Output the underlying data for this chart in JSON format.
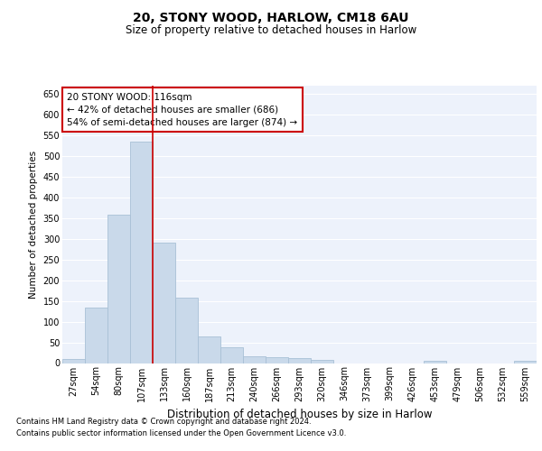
{
  "title": "20, STONY WOOD, HARLOW, CM18 6AU",
  "subtitle": "Size of property relative to detached houses in Harlow",
  "xlabel": "Distribution of detached houses by size in Harlow",
  "ylabel": "Number of detached properties",
  "footnote1": "Contains HM Land Registry data © Crown copyright and database right 2024.",
  "footnote2": "Contains public sector information licensed under the Open Government Licence v3.0.",
  "annotation_line1": "20 STONY WOOD: 116sqm",
  "annotation_line2": "← 42% of detached houses are smaller (686)",
  "annotation_line3": "54% of semi-detached houses are larger (874) →",
  "bar_color": "#c9d9ea",
  "bar_edge_color": "#a8c0d6",
  "redline_color": "#cc0000",
  "annotation_box_edgecolor": "#cc0000",
  "background_color": "#edf2fb",
  "grid_color": "#ffffff",
  "categories": [
    "27sqm",
    "54sqm",
    "80sqm",
    "107sqm",
    "133sqm",
    "160sqm",
    "187sqm",
    "213sqm",
    "240sqm",
    "266sqm",
    "293sqm",
    "320sqm",
    "346sqm",
    "373sqm",
    "399sqm",
    "426sqm",
    "453sqm",
    "479sqm",
    "506sqm",
    "532sqm",
    "559sqm"
  ],
  "values": [
    10,
    135,
    358,
    535,
    290,
    157,
    65,
    38,
    17,
    14,
    11,
    8,
    0,
    0,
    0,
    0,
    5,
    0,
    0,
    0,
    5
  ],
  "ylim": [
    0,
    670
  ],
  "yticks": [
    0,
    50,
    100,
    150,
    200,
    250,
    300,
    350,
    400,
    450,
    500,
    550,
    600,
    650
  ],
  "redline_x": 3.5,
  "title_fontsize": 10,
  "subtitle_fontsize": 8.5,
  "ylabel_fontsize": 7.5,
  "xlabel_fontsize": 8.5,
  "tick_fontsize": 7,
  "annotation_fontsize": 7.5,
  "footnote_fontsize": 6
}
